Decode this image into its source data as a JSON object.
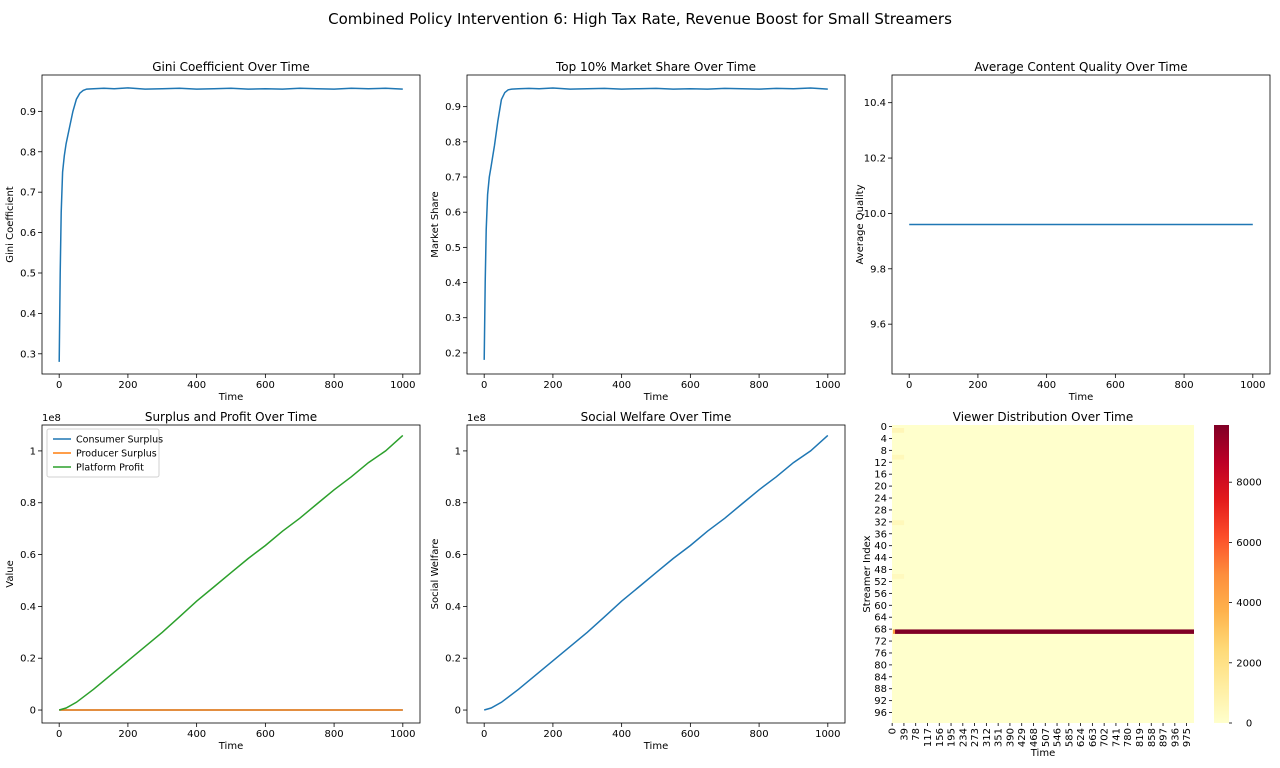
{
  "figure": {
    "title": "Combined Policy Intervention 6: High Tax Rate, Revenue Boost for Small Streamers"
  },
  "colors": {
    "blue": "#1f77b4",
    "orange": "#ff7f0e",
    "green": "#2ca02c",
    "heat_low": "#ffffcc",
    "heat_mid": "#fd8d3c",
    "heat_high": "#800026"
  },
  "chart_data": [
    {
      "id": "gini",
      "type": "line",
      "title": "Gini Coefficient Over Time",
      "xlabel": "Time",
      "ylabel": "Gini Coefficient",
      "xlim": [
        -50,
        1050
      ],
      "ylim": [
        0.25,
        0.99
      ],
      "xticks": [
        0,
        200,
        400,
        600,
        800,
        1000
      ],
      "yticks": [
        0.3,
        0.4,
        0.5,
        0.6,
        0.7,
        0.8,
        0.9
      ],
      "series": [
        {
          "color": "#1f77b4",
          "x": [
            0,
            3,
            6,
            10,
            15,
            20,
            25,
            30,
            40,
            50,
            60,
            70,
            80,
            100,
            130,
            160,
            200,
            250,
            300,
            350,
            400,
            450,
            500,
            550,
            600,
            650,
            700,
            750,
            800,
            850,
            900,
            950,
            1000
          ],
          "y": [
            0.28,
            0.5,
            0.65,
            0.75,
            0.79,
            0.82,
            0.84,
            0.86,
            0.9,
            0.93,
            0.945,
            0.952,
            0.955,
            0.956,
            0.957,
            0.956,
            0.958,
            0.955,
            0.956,
            0.957,
            0.955,
            0.956,
            0.957,
            0.955,
            0.956,
            0.955,
            0.957,
            0.956,
            0.955,
            0.957,
            0.956,
            0.957,
            0.955
          ]
        }
      ]
    },
    {
      "id": "top10",
      "type": "line",
      "title": "Top 10% Market Share Over Time",
      "xlabel": "Time",
      "ylabel": "Market Share",
      "xlim": [
        -50,
        1050
      ],
      "ylim": [
        0.14,
        0.99
      ],
      "xticks": [
        0,
        200,
        400,
        600,
        800,
        1000
      ],
      "yticks": [
        0.2,
        0.3,
        0.4,
        0.5,
        0.6,
        0.7,
        0.8,
        0.9
      ],
      "series": [
        {
          "color": "#1f77b4",
          "x": [
            0,
            3,
            6,
            10,
            15,
            20,
            25,
            30,
            40,
            50,
            60,
            70,
            80,
            100,
            130,
            160,
            200,
            250,
            300,
            350,
            400,
            450,
            500,
            550,
            600,
            650,
            700,
            750,
            800,
            850,
            900,
            950,
            1000
          ],
          "y": [
            0.18,
            0.4,
            0.55,
            0.65,
            0.7,
            0.73,
            0.76,
            0.79,
            0.86,
            0.92,
            0.94,
            0.948,
            0.95,
            0.951,
            0.952,
            0.951,
            0.953,
            0.95,
            0.951,
            0.952,
            0.95,
            0.951,
            0.952,
            0.95,
            0.951,
            0.95,
            0.952,
            0.951,
            0.95,
            0.952,
            0.951,
            0.953,
            0.95
          ]
        }
      ]
    },
    {
      "id": "quality",
      "type": "line",
      "title": "Average Content Quality Over Time",
      "xlabel": "Time",
      "ylabel": "Average Quality",
      "xlim": [
        -50,
        1050
      ],
      "ylim": [
        9.42,
        10.5
      ],
      "xticks": [
        0,
        200,
        400,
        600,
        800,
        1000
      ],
      "yticks": [
        9.6,
        9.8,
        10.0,
        10.2,
        10.4
      ],
      "ytick_labels": [
        "9.6",
        "9.8",
        "10.0",
        "10.2",
        "10.4"
      ],
      "series": [
        {
          "color": "#1f77b4",
          "x": [
            0,
            1000
          ],
          "y": [
            9.96,
            9.96
          ]
        }
      ]
    },
    {
      "id": "surplus",
      "type": "line",
      "title": "Surplus and Profit Over Time",
      "xlabel": "Time",
      "ylabel": "Value",
      "offset_text": "1e8",
      "xlim": [
        -50,
        1050
      ],
      "ylim": [
        -0.05,
        1.1
      ],
      "xticks": [
        0,
        200,
        400,
        600,
        800,
        1000
      ],
      "yticks": [
        0.0,
        0.2,
        0.4,
        0.6,
        0.8,
        1.0
      ],
      "legend_position": "upper-left",
      "series": [
        {
          "name": "Consumer Surplus",
          "color": "#1f77b4",
          "x": [
            0,
            1000
          ],
          "y": [
            0,
            0
          ]
        },
        {
          "name": "Producer Surplus",
          "color": "#ff7f0e",
          "x": [
            0,
            1000
          ],
          "y": [
            0,
            0
          ]
        },
        {
          "name": "Platform Profit",
          "color": "#2ca02c",
          "x": [
            0,
            20,
            50,
            100,
            150,
            200,
            250,
            300,
            350,
            400,
            450,
            500,
            550,
            600,
            650,
            700,
            750,
            800,
            850,
            900,
            950,
            1000
          ],
          "y": [
            0,
            0.008,
            0.03,
            0.08,
            0.135,
            0.19,
            0.245,
            0.3,
            0.36,
            0.42,
            0.475,
            0.53,
            0.585,
            0.635,
            0.69,
            0.74,
            0.795,
            0.85,
            0.9,
            0.955,
            1.0,
            1.06
          ]
        }
      ]
    },
    {
      "id": "welfare",
      "type": "line",
      "title": "Social Welfare Over Time",
      "xlabel": "Time",
      "ylabel": "Social Welfare",
      "offset_text": "1e8",
      "xlim": [
        -50,
        1050
      ],
      "ylim": [
        -0.05,
        1.1
      ],
      "xticks": [
        0,
        200,
        400,
        600,
        800,
        1000
      ],
      "yticks": [
        0.0,
        0.2,
        0.4,
        0.6,
        0.8,
        1.0
      ],
      "series": [
        {
          "color": "#1f77b4",
          "x": [
            0,
            20,
            50,
            100,
            150,
            200,
            250,
            300,
            350,
            400,
            450,
            500,
            550,
            600,
            650,
            700,
            750,
            800,
            850,
            900,
            950,
            1000
          ],
          "y": [
            0,
            0.008,
            0.03,
            0.08,
            0.135,
            0.19,
            0.245,
            0.3,
            0.36,
            0.42,
            0.475,
            0.53,
            0.585,
            0.635,
            0.69,
            0.74,
            0.795,
            0.85,
            0.9,
            0.955,
            1.0,
            1.06
          ]
        }
      ]
    },
    {
      "id": "viewers",
      "type": "heatmap",
      "title": "Viewer Distribution Over Time",
      "xlabel": "Time",
      "ylabel": "Streamer Index",
      "x_tick_labels": [
        "0",
        "39",
        "78",
        "117",
        "156",
        "195",
        "234",
        "273",
        "312",
        "351",
        "390",
        "429",
        "468",
        "507",
        "546",
        "585",
        "624",
        "663",
        "702",
        "741",
        "780",
        "819",
        "858",
        "897",
        "936",
        "975"
      ],
      "y_tick_labels": [
        "0",
        "4",
        "8",
        "12",
        "16",
        "20",
        "24",
        "28",
        "32",
        "36",
        "40",
        "44",
        "48",
        "52",
        "56",
        "60",
        "64",
        "68",
        "72",
        "76",
        "80",
        "84",
        "88",
        "92",
        "96"
      ],
      "n_streamers": 100,
      "n_time": 1000,
      "vmin": 0,
      "vmax": 9900,
      "colorbar_ticks": [
        0,
        2000,
        4000,
        6000,
        8000
      ],
      "dominant_streamer": {
        "index": 69,
        "viewers": 9900,
        "from_time": 10
      },
      "faint_rows": [
        {
          "index": 1,
          "viewers": 600,
          "to_time": 40
        },
        {
          "index": 10,
          "viewers": 500,
          "to_time": 40
        },
        {
          "index": 32,
          "viewers": 500,
          "to_time": 40
        },
        {
          "index": 50,
          "viewers": 400,
          "to_time": 40
        }
      ]
    }
  ]
}
